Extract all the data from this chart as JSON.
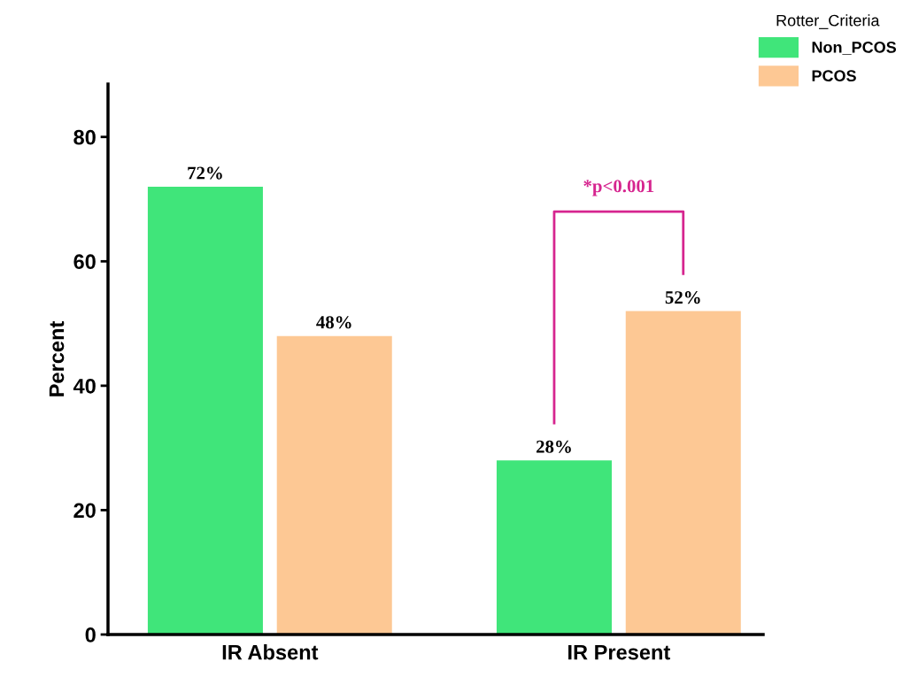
{
  "chart_data": {
    "type": "bar",
    "ylabel": "Percent",
    "legend_title": "Rotter_Criteria",
    "legend": "top right",
    "categories": [
      "IR Absent",
      "IR Present"
    ],
    "series": [
      {
        "name": "Non_PCOS",
        "color": "#40e57a",
        "values": [
          72,
          28
        ],
        "value_labels": [
          "72%",
          "28%"
        ]
      },
      {
        "name": "PCOS",
        "color": "#fdc894",
        "values": [
          48,
          52
        ],
        "value_labels": [
          "48%",
          "52%"
        ]
      }
    ],
    "ylim": [
      0,
      88.5
    ],
    "yticks": [
      0,
      20,
      40,
      60,
      80
    ],
    "grid": false,
    "annotations": [
      "*p<0.001"
    ]
  }
}
